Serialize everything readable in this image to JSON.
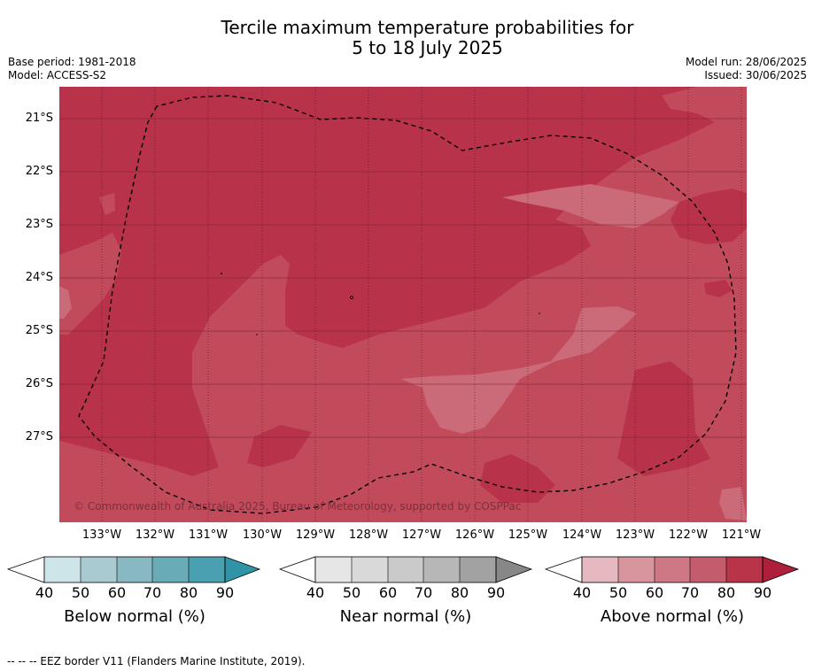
{
  "title": {
    "line1": "Tercile maximum temperature probabilities for",
    "line2": "5 to 18 July 2025"
  },
  "meta": {
    "base_period": "Base period: 1981-2018",
    "model": "Model: ACCESS-S2",
    "model_run": "Model run: 28/06/2025",
    "issued": "Issued: 30/06/2025"
  },
  "map": {
    "lat_labels": [
      "21°S",
      "22°S",
      "23°S",
      "24°S",
      "25°S",
      "26°S",
      "27°S"
    ],
    "lon_labels": [
      "133°W",
      "132°W",
      "131°W",
      "130°W",
      "129°W",
      "128°W",
      "127°W",
      "126°W",
      "125°W",
      "124°W",
      "123°W",
      "122°W",
      "121°W"
    ],
    "copyright": "© Commonwealth of Australia 2025, Bureau of Meteorology, supported by COSPPac",
    "colors": {
      "above_70_80": "#c14b5b",
      "above_80_90": "#b8334a",
      "above_60_70": "#cb6a78",
      "eez_line": "#000000"
    }
  },
  "colorbars": [
    {
      "label": "Below normal (%)",
      "ticks": [
        "40",
        "50",
        "60",
        "70",
        "80",
        "90"
      ],
      "colors": [
        "#cde4e8",
        "#a8cad0",
        "#88b8c2",
        "#6aabb8",
        "#4a9fb0",
        "#3194a6"
      ]
    },
    {
      "label": "Near normal (%)",
      "ticks": [
        "40",
        "50",
        "60",
        "70",
        "80",
        "90"
      ],
      "colors": [
        "#e6e6e6",
        "#d9d9d9",
        "#cacaca",
        "#b7b7b7",
        "#a2a2a2",
        "#878787"
      ]
    },
    {
      "label": "Above normal (%)",
      "ticks": [
        "40",
        "50",
        "60",
        "70",
        "80",
        "90"
      ],
      "colors": [
        "#e6b8bf",
        "#d9959e",
        "#cf7885",
        "#c35c6d",
        "#b93448",
        "#ad1f3a"
      ]
    }
  ],
  "footer": "--  --  -- EEZ border V11 (Flanders Marine Institute, 2019)."
}
